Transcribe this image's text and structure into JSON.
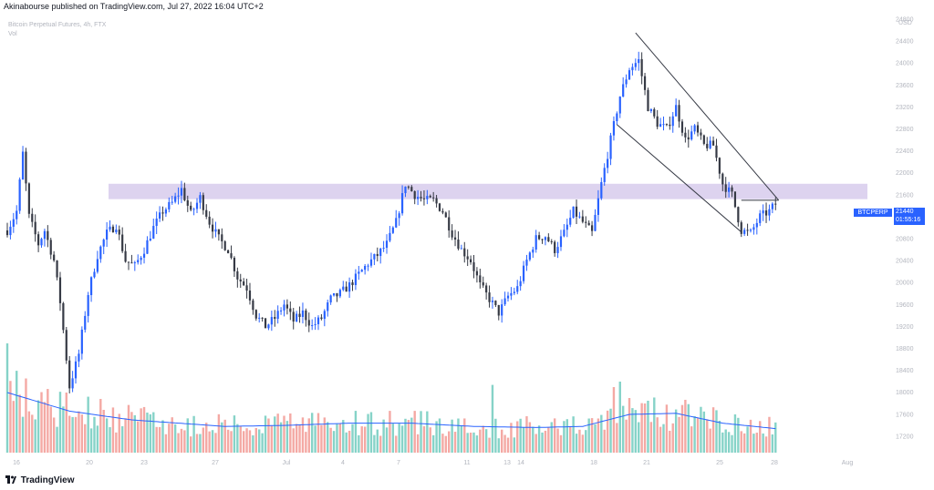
{
  "header": {
    "published": "Akinabourse published on TradingView.com, Jul 27, 2022 16:04 UTC+2"
  },
  "legend": {
    "symbol_line": "Bitcoin Perpetual Futures, 4h, FTX",
    "vol_label": "Vol"
  },
  "price_tag": {
    "symbol": "BTCPERP",
    "price": "21440",
    "countdown": "01:55:16"
  },
  "footer": {
    "brand": "TradingView"
  },
  "colors": {
    "up": "#2962ff",
    "down": "#363a45",
    "vol_up": "#86d3c8",
    "vol_down": "#f4a9a4",
    "zone": "#d1c4e9",
    "vol_ma": "#2962ff",
    "channel": "#363a45"
  },
  "chart_data": {
    "type": "candlestick",
    "timeframe": "4h",
    "y_unit": "USD",
    "ylim": [
      16900,
      24850
    ],
    "y_ticks": [
      24800,
      24400,
      24000,
      23600,
      23200,
      22800,
      22400,
      22000,
      21600,
      21200,
      20800,
      20400,
      20000,
      19600,
      19200,
      18800,
      18400,
      18000,
      17600,
      17200
    ],
    "x_ticks": [
      "16",
      "20",
      "23",
      "27",
      "Jul",
      "4",
      "7",
      "11",
      "13",
      "14",
      "18",
      "21",
      "25",
      "28",
      "Aug"
    ],
    "last_price": 21440,
    "path_anchors": [
      [
        0,
        20950
      ],
      [
        3,
        21300
      ],
      [
        5,
        22350
      ],
      [
        7,
        21200
      ],
      [
        10,
        20700
      ],
      [
        12,
        20950
      ],
      [
        15,
        20400
      ],
      [
        17,
        19650
      ],
      [
        20,
        18100
      ],
      [
        23,
        18700
      ],
      [
        26,
        19800
      ],
      [
        29,
        20500
      ],
      [
        32,
        20900
      ],
      [
        35,
        21050
      ],
      [
        38,
        20400
      ],
      [
        41,
        20300
      ],
      [
        44,
        20600
      ],
      [
        47,
        21000
      ],
      [
        50,
        21300
      ],
      [
        53,
        21450
      ],
      [
        56,
        21700
      ],
      [
        59,
        21250
      ],
      [
        62,
        21550
      ],
      [
        65,
        21100
      ],
      [
        68,
        20800
      ],
      [
        71,
        20600
      ],
      [
        74,
        20100
      ],
      [
        77,
        19900
      ],
      [
        80,
        19400
      ],
      [
        83,
        19200
      ],
      [
        86,
        19350
      ],
      [
        89,
        19600
      ],
      [
        92,
        19300
      ],
      [
        95,
        19450
      ],
      [
        98,
        19200
      ],
      [
        101,
        19350
      ],
      [
        104,
        19700
      ],
      [
        107,
        19800
      ],
      [
        110,
        19950
      ],
      [
        113,
        20150
      ],
      [
        116,
        20350
      ],
      [
        119,
        20500
      ],
      [
        122,
        20700
      ],
      [
        125,
        21100
      ],
      [
        128,
        21800
      ],
      [
        131,
        21600
      ],
      [
        134,
        21500
      ],
      [
        137,
        21500
      ],
      [
        140,
        21300
      ],
      [
        143,
        20900
      ],
      [
        146,
        20600
      ],
      [
        149,
        20400
      ],
      [
        152,
        19950
      ],
      [
        155,
        19700
      ],
      [
        158,
        19450
      ],
      [
        161,
        19750
      ],
      [
        164,
        19900
      ],
      [
        167,
        20400
      ],
      [
        170,
        20800
      ],
      [
        173,
        20850
      ],
      [
        176,
        20600
      ],
      [
        179,
        20900
      ],
      [
        182,
        21300
      ],
      [
        185,
        21100
      ],
      [
        188,
        20900
      ],
      [
        191,
        21800
      ],
      [
        194,
        22600
      ],
      [
        197,
        23400
      ],
      [
        200,
        23900
      ],
      [
        203,
        24050
      ],
      [
        206,
        23200
      ],
      [
        209,
        22900
      ],
      [
        212,
        22800
      ],
      [
        215,
        23200
      ],
      [
        218,
        22600
      ],
      [
        221,
        22800
      ],
      [
        224,
        22500
      ],
      [
        227,
        22500
      ],
      [
        230,
        21800
      ],
      [
        233,
        21600
      ],
      [
        236,
        20950
      ],
      [
        239,
        20900
      ],
      [
        242,
        21200
      ],
      [
        245,
        21300
      ],
      [
        247,
        21440
      ]
    ],
    "volume_ma_anchors": [
      [
        0,
        0.55
      ],
      [
        20,
        0.38
      ],
      [
        40,
        0.3
      ],
      [
        70,
        0.24
      ],
      [
        90,
        0.25
      ],
      [
        110,
        0.27
      ],
      [
        130,
        0.27
      ],
      [
        150,
        0.24
      ],
      [
        170,
        0.23
      ],
      [
        185,
        0.24
      ],
      [
        200,
        0.35
      ],
      [
        215,
        0.36
      ],
      [
        230,
        0.27
      ],
      [
        247,
        0.22
      ]
    ],
    "volume_spikes": [
      [
        0,
        1.0
      ],
      [
        19,
        0.55
      ],
      [
        130,
        0.32
      ],
      [
        156,
        0.62
      ],
      [
        195,
        0.6
      ],
      [
        197,
        0.65
      ],
      [
        205,
        0.45
      ],
      [
        200,
        0.5
      ]
    ],
    "resistance_zone": [
      21520,
      21800
    ],
    "channel": {
      "upper": [
        [
          202,
          24550
        ],
        [
          248,
          21500
        ]
      ],
      "lower": [
        [
          196,
          22880
        ],
        [
          236,
          20920
        ]
      ]
    },
    "horizontal_line": {
      "from": 236,
      "to": 248,
      "price": 21500
    }
  }
}
